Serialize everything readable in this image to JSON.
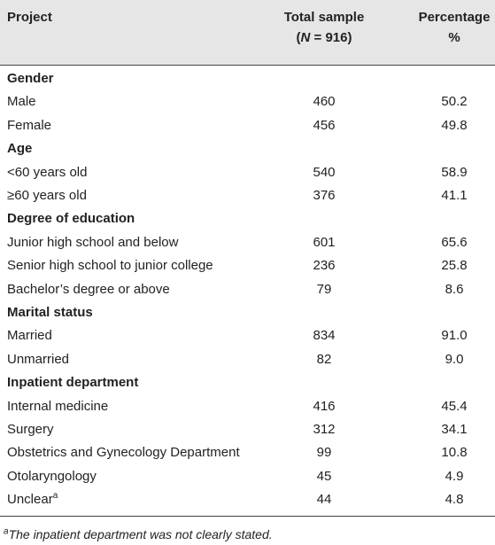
{
  "header": {
    "project": "Project",
    "total_sample": {
      "line1": "Total sample",
      "open": "(",
      "n_symbol": "N",
      "rest": " = 916)"
    },
    "percentage": {
      "line1": "Percentage",
      "line2": "%"
    }
  },
  "rows": [
    {
      "section": "Gender"
    },
    {
      "label": "Male",
      "count": "460",
      "percent": "50.2"
    },
    {
      "label": "Female",
      "count": "456",
      "percent": "49.8"
    },
    {
      "section": "Age"
    },
    {
      "label": "<60 years old",
      "count": "540",
      "percent": "58.9"
    },
    {
      "label": "≥60 years old",
      "count": "376",
      "percent": "41.1"
    },
    {
      "section": "Degree of education"
    },
    {
      "label": "Junior high school and below",
      "count": "601",
      "percent": "65.6"
    },
    {
      "label": "Senior high school to junior college",
      "count": "236",
      "percent": "25.8"
    },
    {
      "label": "Bachelor’s degree or above",
      "count": "79",
      "percent": "8.6"
    },
    {
      "section": "Marital status"
    },
    {
      "label": "Married",
      "count": "834",
      "percent": "91.0"
    },
    {
      "label": "Unmarried",
      "count": "82",
      "percent": "9.0"
    },
    {
      "section": "Inpatient department"
    },
    {
      "label": "Internal medicine",
      "count": "416",
      "percent": "45.4"
    },
    {
      "label": "Surgery",
      "count": "312",
      "percent": "34.1"
    },
    {
      "label": "Obstetrics and Gynecology Department",
      "count": "99",
      "percent": "10.8"
    },
    {
      "label": "Otolaryngology",
      "count": "45",
      "percent": "4.9"
    },
    {
      "label": "Unclear",
      "note_mark": "a",
      "count": "44",
      "percent": "4.8"
    }
  ],
  "footnote": {
    "mark": "a",
    "text": "The inpatient department was not clearly stated."
  }
}
